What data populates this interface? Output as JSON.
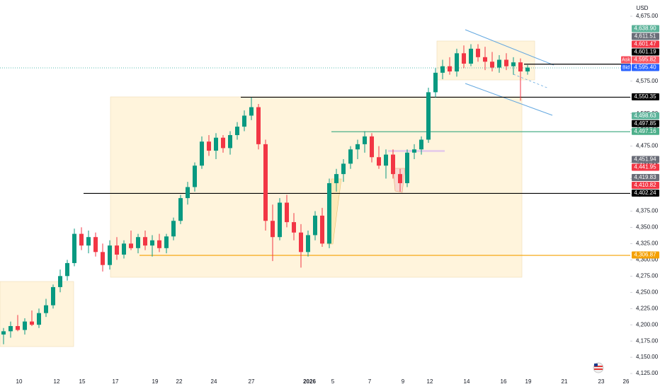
{
  "chart_data": {
    "type": "candlestick",
    "currency": "USD",
    "colors": {
      "up": "#089981",
      "down": "#f23645"
    },
    "ylim": [
      4112,
      4700
    ],
    "yticks": [
      {
        "value": 4125,
        "label": "4,125.00"
      },
      {
        "value": 4150,
        "label": "4,150.00"
      },
      {
        "value": 4175,
        "label": "4,175.00"
      },
      {
        "value": 4200,
        "label": "4,200.00"
      },
      {
        "value": 4225,
        "label": "4,225.00"
      },
      {
        "value": 4250,
        "label": "4,250.00"
      },
      {
        "value": 4275,
        "label": "4,275.00"
      },
      {
        "value": 4300,
        "label": "4,300.00"
      },
      {
        "value": 4325,
        "label": "4,325.00"
      },
      {
        "value": 4350,
        "label": "4,350.00"
      },
      {
        "value": 4375,
        "label": "4,375.00"
      },
      {
        "value": 4400,
        "label": "4,400.00"
      },
      {
        "value": 4425,
        "label": "4,425.00"
      },
      {
        "value": 4450,
        "label": "4,450.00"
      },
      {
        "value": 4475,
        "label": "4,475.00"
      },
      {
        "value": 4500,
        "label": "4,500.00"
      },
      {
        "value": 4525,
        "label": "4,525.00"
      },
      {
        "value": 4550,
        "label": "4,550.00"
      },
      {
        "value": 4575,
        "label": "4,575.00"
      },
      {
        "value": 4675,
        "label": "4,675.00"
      }
    ],
    "x_labels": [
      "10",
      "12",
      "15",
      "17",
      "19",
      "22",
      "24",
      "27",
      "2026",
      "5",
      "7",
      "9",
      "12",
      "14",
      "16",
      "19",
      "21",
      "23",
      "26"
    ],
    "ohlc": [
      [
        4185,
        4195,
        4170,
        4190
      ],
      [
        4190,
        4205,
        4180,
        4198
      ],
      [
        4198,
        4215,
        4190,
        4192
      ],
      [
        4192,
        4210,
        4185,
        4205
      ],
      [
        4205,
        4222,
        4198,
        4200
      ],
      [
        4200,
        4225,
        4195,
        4218
      ],
      [
        4218,
        4240,
        4212,
        4230
      ],
      [
        4230,
        4262,
        4225,
        4258
      ],
      [
        4258,
        4285,
        4250,
        4275
      ],
      [
        4275,
        4300,
        4268,
        4295
      ],
      [
        4295,
        4348,
        4290,
        4340
      ],
      [
        4340,
        4350,
        4315,
        4322
      ],
      [
        4322,
        4345,
        4310,
        4335
      ],
      [
        4335,
        4342,
        4305,
        4312
      ],
      [
        4312,
        4325,
        4282,
        4292
      ],
      [
        4292,
        4330,
        4285,
        4322
      ],
      [
        4322,
        4335,
        4300,
        4308
      ],
      [
        4308,
        4330,
        4302,
        4325
      ],
      [
        4325,
        4345,
        4315,
        4318
      ],
      [
        4318,
        4340,
        4310,
        4335
      ],
      [
        4335,
        4345,
        4315,
        4322
      ],
      [
        4322,
        4338,
        4305,
        4330
      ],
      [
        4330,
        4340,
        4312,
        4318
      ],
      [
        4318,
        4340,
        4310,
        4336
      ],
      [
        4336,
        4365,
        4330,
        4360
      ],
      [
        4360,
        4400,
        4355,
        4395
      ],
      [
        4395,
        4420,
        4385,
        4412
      ],
      [
        4412,
        4450,
        4405,
        4445
      ],
      [
        4445,
        4490,
        4440,
        4482
      ],
      [
        4482,
        4492,
        4460,
        4468
      ],
      [
        4468,
        4495,
        4455,
        4488
      ],
      [
        4488,
        4492,
        4465,
        4472
      ],
      [
        4472,
        4498,
        4462,
        4492
      ],
      [
        4492,
        4512,
        4485,
        4505
      ],
      [
        4505,
        4530,
        4498,
        4522
      ],
      [
        4522,
        4550,
        4515,
        4535
      ],
      [
        4535,
        4540,
        4470,
        4478
      ],
      [
        4478,
        4485,
        4345,
        4360
      ],
      [
        4360,
        4385,
        4298,
        4335
      ],
      [
        4335,
        4395,
        4330,
        4388
      ],
      [
        4388,
        4400,
        4350,
        4358
      ],
      [
        4358,
        4372,
        4330,
        4342
      ],
      [
        4342,
        4355,
        4288,
        4312
      ],
      [
        4312,
        4345,
        4305,
        4338
      ],
      [
        4338,
        4375,
        4330,
        4368
      ],
      [
        4368,
        4380,
        4320,
        4325
      ],
      [
        4325,
        4425,
        4318,
        4418
      ],
      [
        4418,
        4440,
        4405,
        4432
      ],
      [
        4432,
        4455,
        4420,
        4448
      ],
      [
        4448,
        4475,
        4440,
        4470
      ],
      [
        4470,
        4485,
        4455,
        4478
      ],
      [
        4478,
        4498,
        4465,
        4490
      ],
      [
        4490,
        4495,
        4450,
        4458
      ],
      [
        4458,
        4475,
        4440,
        4445
      ],
      [
        4445,
        4470,
        4425,
        4462
      ],
      [
        4462,
        4470,
        4425,
        4432
      ],
      [
        4432,
        4440,
        4405,
        4418
      ],
      [
        4418,
        4470,
        4412,
        4465
      ],
      [
        4465,
        4478,
        4455,
        4470
      ],
      [
        4470,
        4490,
        4462,
        4485
      ],
      [
        4485,
        4565,
        4480,
        4558
      ],
      [
        4558,
        4595,
        4550,
        4588
      ],
      [
        4588,
        4608,
        4578,
        4598
      ],
      [
        4598,
        4612,
        4585,
        4590
      ],
      [
        4590,
        4625,
        4582,
        4618
      ],
      [
        4618,
        4630,
        4595,
        4602
      ],
      [
        4602,
        4632,
        4598,
        4625
      ],
      [
        4625,
        4632,
        4605,
        4612
      ],
      [
        4612,
        4628,
        4592,
        4605
      ],
      [
        4605,
        4620,
        4590,
        4596
      ],
      [
        4596,
        4615,
        4588,
        4608
      ],
      [
        4608,
        4618,
        4592,
        4598
      ],
      [
        4598,
        4612,
        4585,
        4604
      ],
      [
        4604,
        4610,
        4545,
        4590
      ],
      [
        4590,
        4600,
        4585,
        4596
      ]
    ],
    "price_tags": [
      {
        "value": 4638.9,
        "label": "4,638.90",
        "color": "#5cb39a"
      },
      {
        "value": 4611.51,
        "label": "4,611.51",
        "color": "#6a6d78"
      },
      {
        "value": 4601.47,
        "label": "4,601.47",
        "color": "#f23645"
      },
      {
        "value": 4601.19,
        "label": "4,601.19",
        "color": "#000000"
      },
      {
        "value": 4595.82,
        "label": "4,595.82",
        "color": "#f7525f",
        "tag": "Ask"
      },
      {
        "value": 4595.4,
        "label": "4,595.40",
        "color": "#2962ff",
        "tag": "Bid"
      },
      {
        "value": 4550.35,
        "label": "4,550.35",
        "color": "#000000"
      },
      {
        "value": 4498.63,
        "label": "4,498.63",
        "color": "#5cb39a"
      },
      {
        "value": 4497.85,
        "label": "4,497.85",
        "color": "#000000"
      },
      {
        "value": 4497.16,
        "label": "4,497.16",
        "color": "#4caf8a"
      },
      {
        "value": 4451.94,
        "label": "4,451.94",
        "color": "#6a6d78"
      },
      {
        "value": 4441.95,
        "label": "4,441.95",
        "color": "#f23645"
      },
      {
        "value": 4419.83,
        "label": "4,419.83",
        "color": "#6a6d78"
      },
      {
        "value": 4410.82,
        "label": "4,410.82",
        "color": "#f23645"
      },
      {
        "value": 4402.24,
        "label": "4,402.24",
        "color": "#000000"
      },
      {
        "value": 4306.87,
        "label": "4,306.87",
        "color": "#f5a000"
      }
    ]
  }
}
